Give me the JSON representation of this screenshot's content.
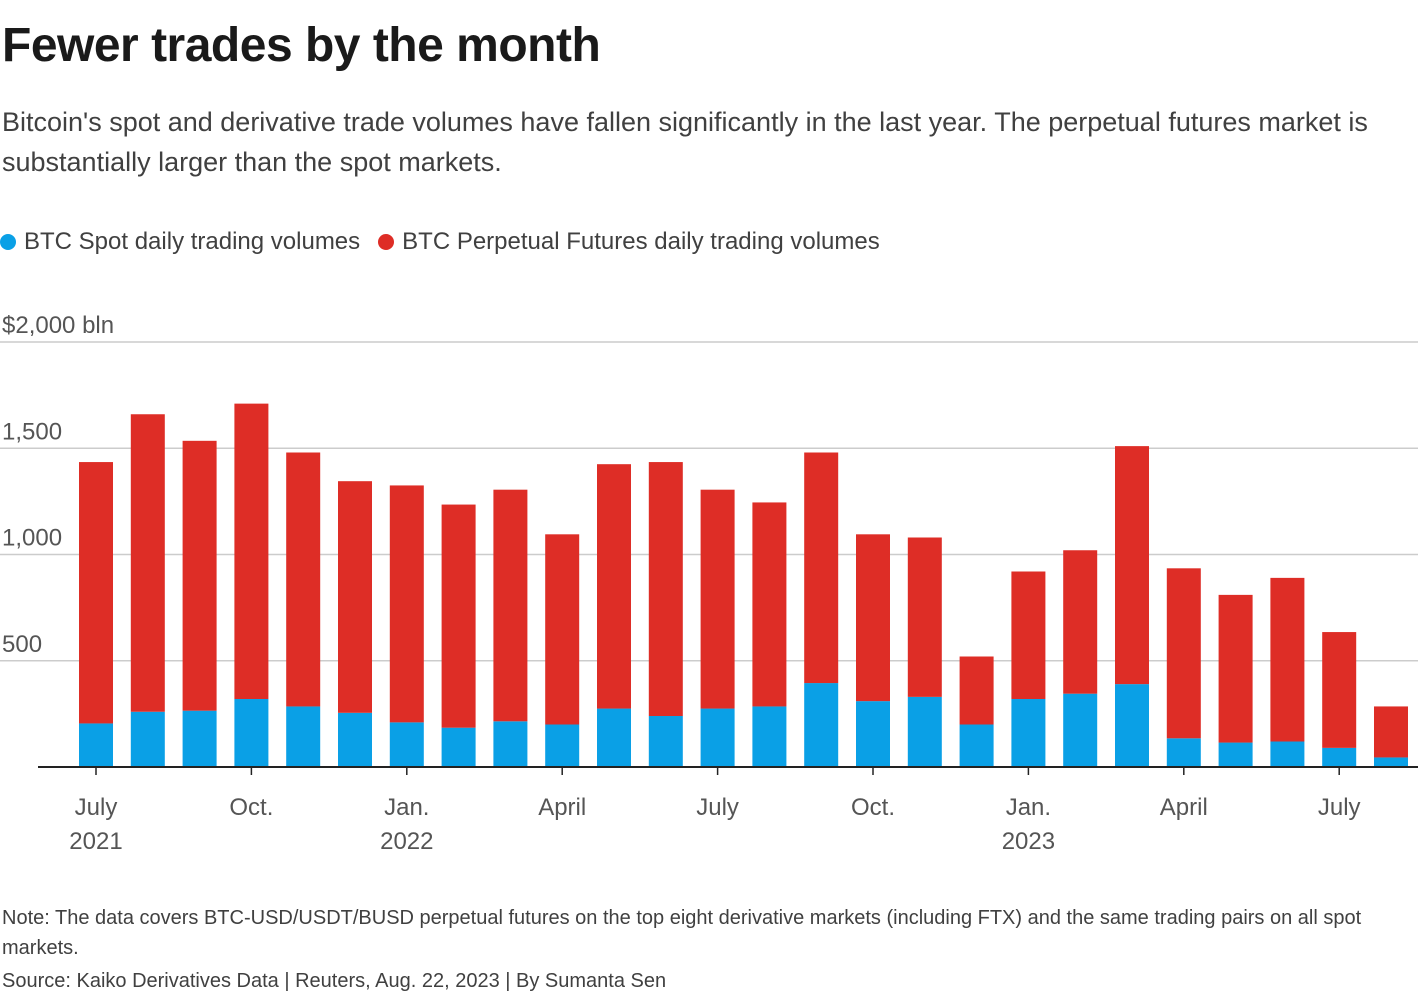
{
  "title": "Fewer trades by the month",
  "subtitle": "Bitcoin's spot and derivative trade volumes have fallen significantly in the last year. The perpetual futures market is substantially larger than the spot markets.",
  "legend": [
    {
      "label": "BTC Spot daily trading volumes",
      "color": "#0aa0e6"
    },
    {
      "label": "BTC Perpetual Futures daily trading volumes",
      "color": "#de2d26"
    }
  ],
  "note": "Note: The data covers BTC-USD/USDT/BUSD perpetual futures on the top eight derivative markets (including FTX) and the same trading pairs on all spot markets.",
  "source": "Source: Kaiko Derivatives Data | Reuters, Aug. 22, 2023 | By Sumanta Sen",
  "colors": {
    "spot": "#0aa0e6",
    "futures": "#de2d26",
    "grid": "#cccccc",
    "axis": "#222222"
  },
  "chart_data": {
    "type": "bar",
    "stacked": true,
    "title": "Fewer trades by the month",
    "ylabel": "$ bln",
    "ylim": [
      0,
      2000
    ],
    "yticks": [
      500,
      1000,
      1500,
      2000
    ],
    "ytick_labels": [
      "500",
      "1,000",
      "1,500",
      "$2,000 bln"
    ],
    "categories": [
      "Jul 2021",
      "Aug 2021",
      "Sep 2021",
      "Oct 2021",
      "Nov 2021",
      "Dec 2021",
      "Jan 2022",
      "Feb 2022",
      "Mar 2022",
      "Apr 2022",
      "May 2022",
      "Jun 2022",
      "Jul 2022",
      "Aug 2022",
      "Sep 2022",
      "Oct 2022",
      "Nov 2022",
      "Dec 2022",
      "Jan 2023",
      "Feb 2023",
      "Mar 2023",
      "Apr 2023",
      "May 2023",
      "Jun 2023",
      "Jul 2023",
      "Aug 2023"
    ],
    "x_ticks": [
      {
        "index": 0,
        "label": "July",
        "sublabel": "2021"
      },
      {
        "index": 3,
        "label": "Oct.",
        "sublabel": ""
      },
      {
        "index": 6,
        "label": "Jan.",
        "sublabel": "2022"
      },
      {
        "index": 9,
        "label": "April",
        "sublabel": ""
      },
      {
        "index": 12,
        "label": "July",
        "sublabel": ""
      },
      {
        "index": 15,
        "label": "Oct.",
        "sublabel": ""
      },
      {
        "index": 18,
        "label": "Jan.",
        "sublabel": "2023"
      },
      {
        "index": 21,
        "label": "April",
        "sublabel": ""
      },
      {
        "index": 24,
        "label": "July",
        "sublabel": ""
      }
    ],
    "series": [
      {
        "name": "BTC Spot daily trading volumes",
        "values": [
          205,
          260,
          265,
          320,
          285,
          255,
          210,
          185,
          215,
          200,
          275,
          240,
          275,
          285,
          395,
          310,
          330,
          200,
          320,
          345,
          390,
          135,
          115,
          120,
          90,
          45
        ]
      },
      {
        "name": "BTC Perpetual Futures daily trading volumes",
        "values": [
          1230,
          1400,
          1270,
          1390,
          1195,
          1090,
          1115,
          1050,
          1090,
          895,
          1150,
          1195,
          1030,
          960,
          1085,
          785,
          750,
          320,
          600,
          675,
          1120,
          800,
          695,
          770,
          545,
          240
        ]
      }
    ]
  }
}
